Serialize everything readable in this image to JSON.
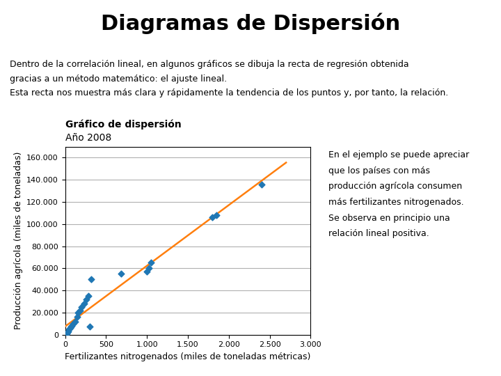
{
  "chart_data": {
    "type": "scatter",
    "title": "Diagramas de Dispersión",
    "subtitle": [
      "Dentro de la correlación lineal, en algunos gráficos se dibuja la recta de regresión obtenida",
      "gracias a un método matemático: el ajuste lineal.",
      "Esta recta nos muestra más clara y rápidamente la tendencia de los puntos y, por tanto, la relación."
    ],
    "axes_title": [
      "Gráfico de dispersión",
      "Año 2008"
    ],
    "annotations": [
      "En el ejemplo se puede apreciar",
      "que los países con más",
      "producción agrícola consumen",
      "más fertilizantes nitrogenados.",
      "Se observa en principio una",
      "relación lineal positiva."
    ],
    "x_label": "Fertilizantes nitrogenados (miles de toneladas métricas)",
    "y_label": "Producción agrícola (miles de toneladas)",
    "x": [
      10,
      20,
      30,
      40,
      50,
      60,
      70,
      80,
      100,
      120,
      150,
      160,
      180,
      200,
      230,
      260,
      280,
      300,
      320,
      680,
      1000,
      1020,
      1050,
      1800,
      1850,
      2400
    ],
    "values": [
      500,
      1000,
      2000,
      3000,
      5000,
      6000,
      7000,
      8000,
      10000,
      12000,
      16000,
      20000,
      22000,
      25000,
      28000,
      32000,
      35000,
      7000,
      50000,
      55000,
      57000,
      60000,
      65000,
      106000,
      108000,
      136000
    ],
    "marker": "D",
    "regression_line": {
      "type": "line",
      "line_style": "solid",
      "x": [
        0,
        2700
      ],
      "values": [
        7413.27,
        155578.5
      ]
    },
    "xlim": [
      0,
      3000
    ],
    "ylim": [
      0,
      170000
    ],
    "xticks": [
      0,
      500,
      {
        "value": 1000,
        "label": "1.000"
      },
      {
        "value": 1500,
        "label": "1.500"
      },
      {
        "value": 2000,
        "label": "2.000"
      },
      {
        "value": 2500,
        "label": "2.500"
      },
      {
        "value": 3000,
        "label": "3.000"
      }
    ],
    "yticks": [
      0,
      {
        "value": 20000,
        "label": "20.000"
      },
      {
        "value": 40000,
        "label": "40.000"
      },
      {
        "value": 60000,
        "label": "60.000"
      },
      {
        "value": 80000,
        "label": "80.000"
      },
      {
        "value": 100000,
        "label": "100.000"
      },
      {
        "value": 120000,
        "label": "120.000"
      },
      {
        "value": 140000,
        "label": "140.000"
      },
      {
        "value": 160000,
        "label": "160.000"
      }
    ],
    "grid": "y"
  }
}
